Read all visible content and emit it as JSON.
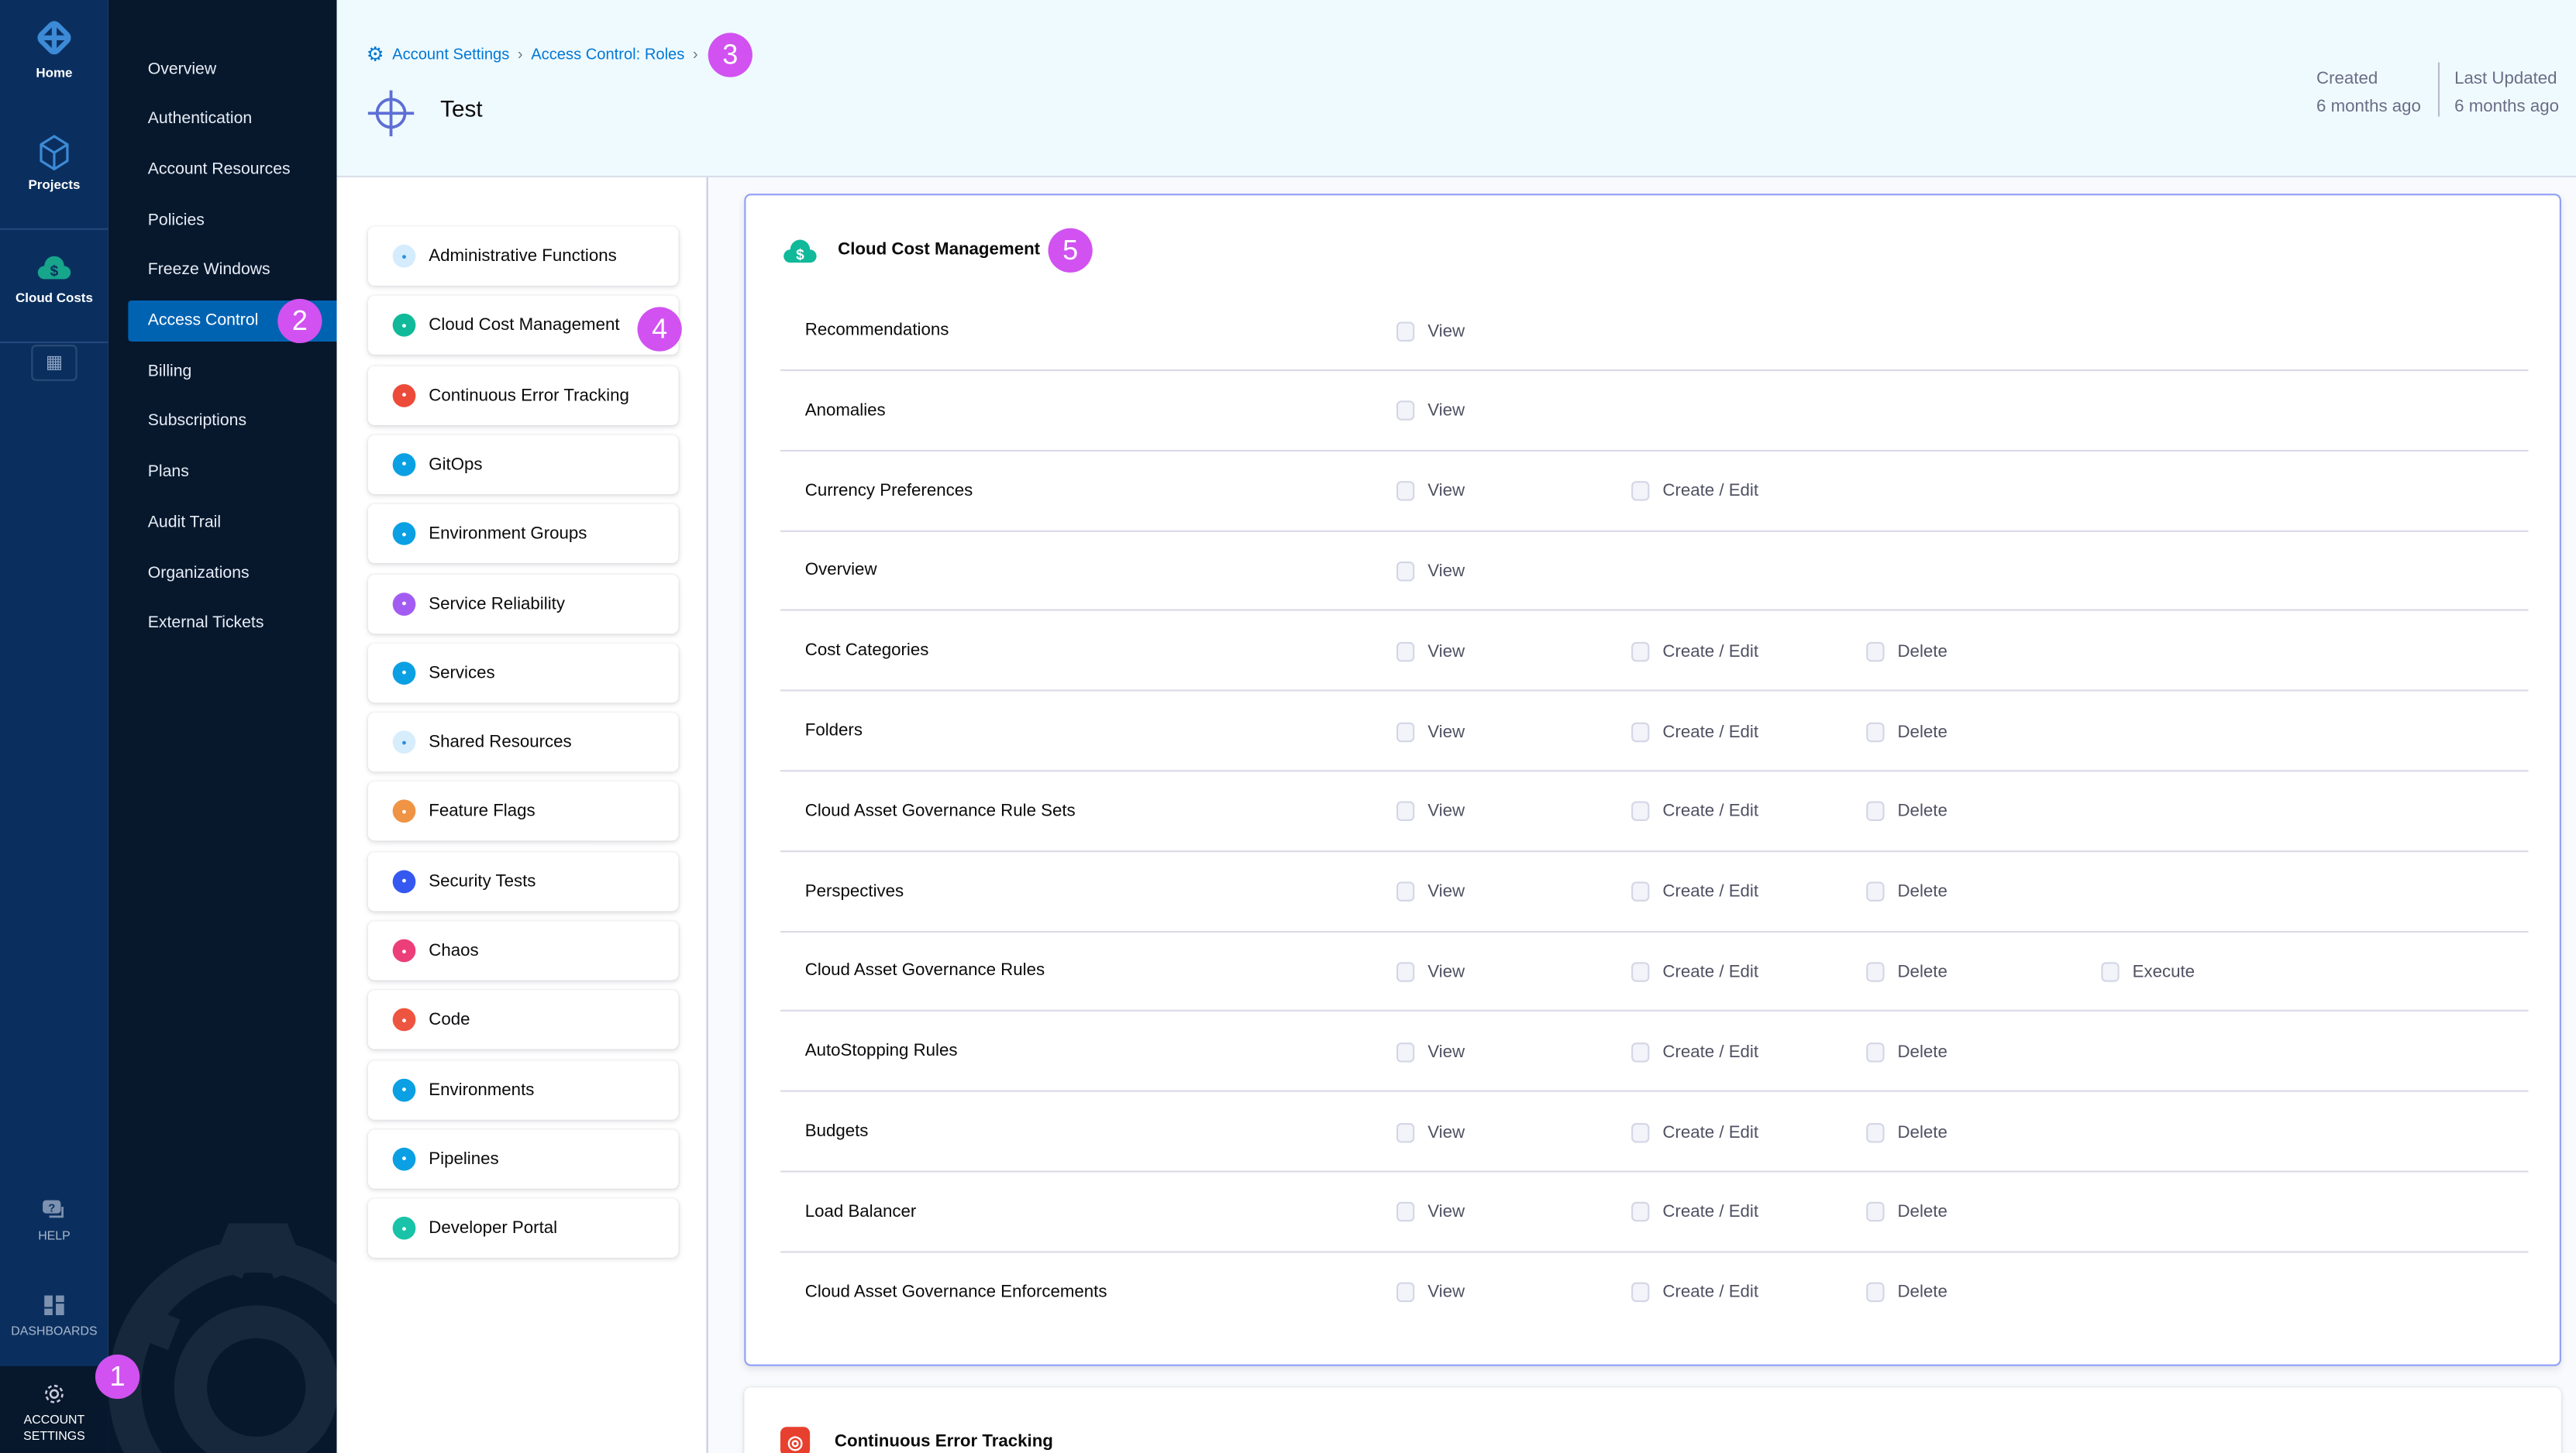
{
  "rail": {
    "home": "Home",
    "projects": "Projects",
    "cloud_costs": "Cloud Costs",
    "help": "HELP",
    "dashboards": "DASHBOARDS",
    "account_settings": "ACCOUNT SETTINGS"
  },
  "sidebar": {
    "active_index": 5,
    "items": [
      "Overview",
      "Authentication",
      "Account Resources",
      "Policies",
      "Freeze Windows",
      "Access Control",
      "Billing",
      "Subscriptions",
      "Plans",
      "Audit Trail",
      "Organizations",
      "External Tickets"
    ]
  },
  "header": {
    "breadcrumbs": [
      "Account Settings",
      "Access Control: Roles"
    ],
    "title": "Test",
    "created_label": "Created",
    "created_value": "6 months ago",
    "updated_label": "Last Updated",
    "updated_value": "6 months ago"
  },
  "modules": [
    {
      "label": "Administrative Functions",
      "icon": "gear-icon",
      "color": "#d4ecfd",
      "fg": "#2b8fe0"
    },
    {
      "label": "Cloud Cost Management",
      "icon": "cloud-dollar-icon",
      "color": "#10b99a",
      "fg": "#fff"
    },
    {
      "label": "Continuous Error Tracking",
      "icon": "target-icon",
      "color": "#ec4b3a",
      "fg": "#fff"
    },
    {
      "label": "GitOps",
      "icon": "gitops-icon",
      "color": "#0aa0e3",
      "fg": "#fff"
    },
    {
      "label": "Environment Groups",
      "icon": "environment-groups-icon",
      "color": "#0aa0e3",
      "fg": "#fff"
    },
    {
      "label": "Service Reliability",
      "icon": "service-reliability-icon",
      "color": "#a35cf2",
      "fg": "#fff"
    },
    {
      "label": "Services",
      "icon": "services-icon",
      "color": "#0aa0e3",
      "fg": "#fff"
    },
    {
      "label": "Shared Resources",
      "icon": "shared-resources-icon",
      "color": "#d7edfc",
      "fg": "#2b8fe0"
    },
    {
      "label": "Feature Flags",
      "icon": "feature-flags-icon",
      "color": "#ef9345",
      "fg": "#fff"
    },
    {
      "label": "Security Tests",
      "icon": "shield-icon",
      "color": "#3458f0",
      "fg": "#fff"
    },
    {
      "label": "Chaos",
      "icon": "chaos-icon",
      "color": "#ec3f7a",
      "fg": "#fff"
    },
    {
      "label": "Code",
      "icon": "code-icon",
      "color": "#ee5540",
      "fg": "#fff"
    },
    {
      "label": "Environments",
      "icon": "environments-icon",
      "color": "#0aa0e3",
      "fg": "#fff"
    },
    {
      "label": "Pipelines",
      "icon": "pipelines-icon",
      "color": "#0aa0e3",
      "fg": "#fff"
    },
    {
      "label": "Developer Portal",
      "icon": "developer-portal-icon",
      "color": "#18c3a8",
      "fg": "#fff"
    }
  ],
  "permissions_card": {
    "title": "Cloud Cost Management",
    "rows": [
      {
        "label": "Recommendations",
        "perms": [
          "View"
        ]
      },
      {
        "label": "Anomalies",
        "perms": [
          "View"
        ]
      },
      {
        "label": "Currency Preferences",
        "perms": [
          "View",
          "Create / Edit"
        ]
      },
      {
        "label": "Overview",
        "perms": [
          "View"
        ]
      },
      {
        "label": "Cost Categories",
        "perms": [
          "View",
          "Create / Edit",
          "Delete"
        ]
      },
      {
        "label": "Folders",
        "perms": [
          "View",
          "Create / Edit",
          "Delete"
        ]
      },
      {
        "label": "Cloud Asset Governance Rule Sets",
        "perms": [
          "View",
          "Create / Edit",
          "Delete"
        ]
      },
      {
        "label": "Perspectives",
        "perms": [
          "View",
          "Create / Edit",
          "Delete"
        ]
      },
      {
        "label": "Cloud Asset Governance Rules",
        "perms": [
          "View",
          "Create / Edit",
          "Delete",
          "Execute"
        ]
      },
      {
        "label": "AutoStopping Rules",
        "perms": [
          "View",
          "Create / Edit",
          "Delete"
        ]
      },
      {
        "label": "Budgets",
        "perms": [
          "View",
          "Create / Edit",
          "Delete"
        ]
      },
      {
        "label": "Load Balancer",
        "perms": [
          "View",
          "Create / Edit",
          "Delete"
        ]
      },
      {
        "label": "Cloud Asset Governance Enforcements",
        "perms": [
          "View",
          "Create / Edit",
          "Delete"
        ]
      }
    ]
  },
  "next_card": {
    "title": "Continuous Error Tracking"
  },
  "annotations": [
    "1",
    "2",
    "3",
    "4",
    "5"
  ],
  "colors": {
    "annotation": "#d152f0",
    "active": "#0063b2",
    "link": "#0278d5"
  }
}
